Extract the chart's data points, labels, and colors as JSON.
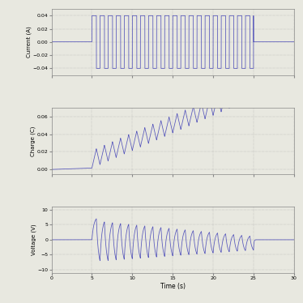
{
  "xlim": [
    0,
    30
  ],
  "xticks": [
    0,
    5,
    10,
    15,
    20,
    25,
    30
  ],
  "line_color": "#5555bb",
  "bg_color": "#e8e8e0",
  "grid_color": "#999999",
  "subplot1": {
    "ylabel": "Current (A)",
    "ylim": [
      -0.05,
      0.05
    ],
    "yticks": [
      -0.04,
      -0.02,
      0,
      0.02,
      0.04
    ]
  },
  "subplot2": {
    "ylabel": "Charge (C)",
    "ylim": [
      -0.005,
      0.07
    ],
    "yticks": [
      0,
      0.02,
      0.04,
      0.06
    ]
  },
  "subplot3": {
    "ylabel": "Voltage (V)",
    "ylim": [
      -11,
      11
    ],
    "yticks": [
      -10,
      -5,
      0,
      5,
      10
    ],
    "xlabel": "Time (s)"
  }
}
